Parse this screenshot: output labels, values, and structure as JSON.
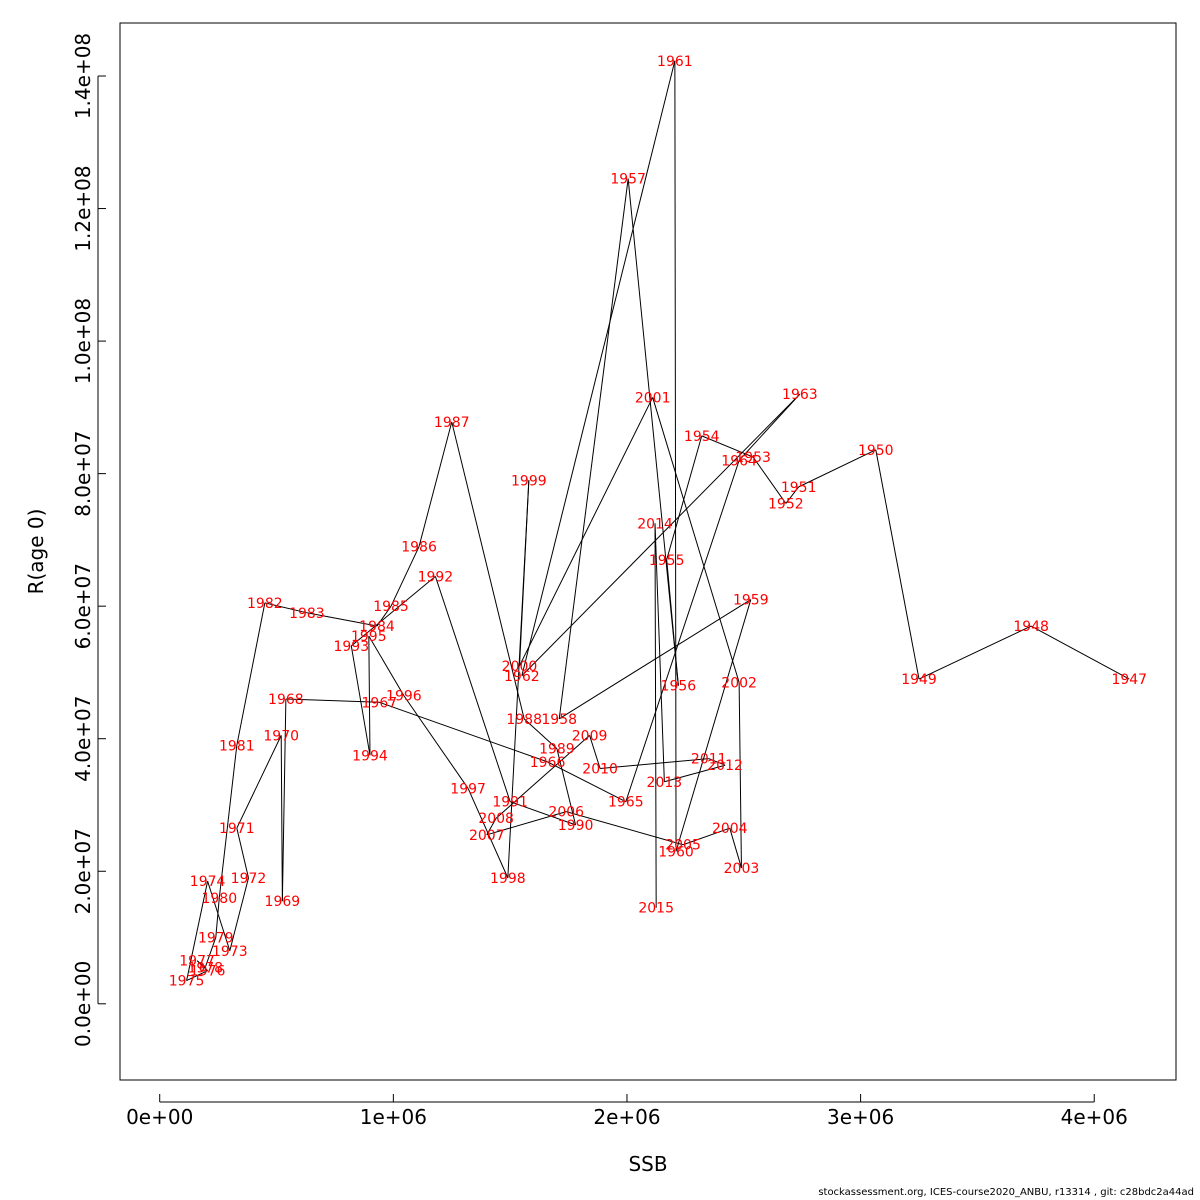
{
  "chart_data": {
    "type": "line",
    "xlabel": "SSB",
    "ylabel": "R(age 0)",
    "xlim": [
      -170000,
      4350000
    ],
    "ylim": [
      -11500000,
      148000000
    ],
    "xticks": [
      0,
      1000000,
      2000000,
      3000000,
      4000000
    ],
    "xtick_labels": [
      "0e+00",
      "1e+06",
      "2e+06",
      "3e+06",
      "4e+06"
    ],
    "yticks": [
      0,
      20000000,
      40000000,
      60000000,
      80000000,
      100000000,
      120000000,
      140000000
    ],
    "ytick_labels": [
      "0.0e+00",
      "2.0e+07",
      "4.0e+07",
      "6.0e+07",
      "8.0e+07",
      "1.0e+08",
      "1.2e+08",
      "1.4e+08"
    ],
    "grid": false,
    "line_color": "#000000",
    "label_color": "#ff0000",
    "points": [
      {
        "year": "1947",
        "x": 4150000,
        "y": 49000000
      },
      {
        "year": "1948",
        "x": 3730000,
        "y": 57000000
      },
      {
        "year": "1949",
        "x": 3250000,
        "y": 49000000
      },
      {
        "year": "1950",
        "x": 3065000,
        "y": 83600000
      },
      {
        "year": "1951",
        "x": 2735000,
        "y": 78000000
      },
      {
        "year": "1952",
        "x": 2680000,
        "y": 75500000
      },
      {
        "year": "1953",
        "x": 2540000,
        "y": 82500000
      },
      {
        "year": "1954",
        "x": 2320000,
        "y": 85700000
      },
      {
        "year": "1955",
        "x": 2170000,
        "y": 67000000
      },
      {
        "year": "1956",
        "x": 2220000,
        "y": 48000000
      },
      {
        "year": "1957",
        "x": 2005000,
        "y": 124500000
      },
      {
        "year": "1958",
        "x": 1710000,
        "y": 43000000
      },
      {
        "year": "1959",
        "x": 2530000,
        "y": 61000000
      },
      {
        "year": "1960",
        "x": 2210000,
        "y": 23000000
      },
      {
        "year": "1961",
        "x": 2205000,
        "y": 142300000
      },
      {
        "year": "1962",
        "x": 1550000,
        "y": 49500000
      },
      {
        "year": "1963",
        "x": 2740000,
        "y": 92000000
      },
      {
        "year": "1964",
        "x": 2480000,
        "y": 82000000
      },
      {
        "year": "1965",
        "x": 1995000,
        "y": 30500000
      },
      {
        "year": "1966",
        "x": 1660000,
        "y": 36500000
      },
      {
        "year": "1967",
        "x": 940000,
        "y": 45500000
      },
      {
        "year": "1968",
        "x": 540000,
        "y": 46000000
      },
      {
        "year": "1969",
        "x": 525000,
        "y": 15500000
      },
      {
        "year": "1970",
        "x": 520000,
        "y": 40500000
      },
      {
        "year": "1971",
        "x": 330000,
        "y": 26500000
      },
      {
        "year": "1972",
        "x": 380000,
        "y": 19000000
      },
      {
        "year": "1973",
        "x": 300000,
        "y": 8000000
      },
      {
        "year": "1974",
        "x": 205000,
        "y": 18500000
      },
      {
        "year": "1975",
        "x": 115000,
        "y": 3500000
      },
      {
        "year": "1976",
        "x": 205000,
        "y": 5000000
      },
      {
        "year": "1977",
        "x": 160000,
        "y": 6500000
      },
      {
        "year": "1978",
        "x": 195000,
        "y": 5500000
      },
      {
        "year": "1979",
        "x": 240000,
        "y": 10000000
      },
      {
        "year": "1980",
        "x": 255000,
        "y": 16000000
      },
      {
        "year": "1981",
        "x": 330000,
        "y": 39000000
      },
      {
        "year": "1982",
        "x": 450000,
        "y": 60500000
      },
      {
        "year": "1983",
        "x": 630000,
        "y": 59000000
      },
      {
        "year": "1984",
        "x": 930000,
        "y": 57000000
      },
      {
        "year": "1985",
        "x": 990000,
        "y": 60000000
      },
      {
        "year": "1986",
        "x": 1110000,
        "y": 69000000
      },
      {
        "year": "1987",
        "x": 1250000,
        "y": 87800000
      },
      {
        "year": "1988",
        "x": 1560000,
        "y": 43000000
      },
      {
        "year": "1989",
        "x": 1700000,
        "y": 38500000
      },
      {
        "year": "1990",
        "x": 1780000,
        "y": 27000000
      },
      {
        "year": "1991",
        "x": 1500000,
        "y": 30500000
      },
      {
        "year": "1992",
        "x": 1180000,
        "y": 64500000
      },
      {
        "year": "1993",
        "x": 820000,
        "y": 54000000
      },
      {
        "year": "1994",
        "x": 900000,
        "y": 37500000
      },
      {
        "year": "1995",
        "x": 895000,
        "y": 55500000
      },
      {
        "year": "1996",
        "x": 1045000,
        "y": 46500000
      },
      {
        "year": "1997",
        "x": 1320000,
        "y": 32500000
      },
      {
        "year": "1998",
        "x": 1490000,
        "y": 19000000
      },
      {
        "year": "1999",
        "x": 1580000,
        "y": 79000000
      },
      {
        "year": "2000",
        "x": 1540000,
        "y": 51000000
      },
      {
        "year": "2001",
        "x": 2110000,
        "y": 91500000
      },
      {
        "year": "2002",
        "x": 2480000,
        "y": 48500000
      },
      {
        "year": "2003",
        "x": 2490000,
        "y": 20500000
      },
      {
        "year": "2004",
        "x": 2440000,
        "y": 26500000
      },
      {
        "year": "2005",
        "x": 2240000,
        "y": 24000000
      },
      {
        "year": "2006",
        "x": 1740000,
        "y": 29000000
      },
      {
        "year": "2007",
        "x": 1400000,
        "y": 25500000
      },
      {
        "year": "2008",
        "x": 1440000,
        "y": 28000000
      },
      {
        "year": "2009",
        "x": 1840000,
        "y": 40500000
      },
      {
        "year": "2010",
        "x": 1885000,
        "y": 35500000
      },
      {
        "year": "2011",
        "x": 2350000,
        "y": 37000000
      },
      {
        "year": "2012",
        "x": 2420000,
        "y": 36000000
      },
      {
        "year": "2013",
        "x": 2160000,
        "y": 33500000
      },
      {
        "year": "2014",
        "x": 2120000,
        "y": 72500000
      },
      {
        "year": "2015",
        "x": 2125000,
        "y": 14500000
      }
    ]
  },
  "footer": "stockassessment.org, ICES-course2020_ANBU, r13314 , git: c28bdc2a44ad"
}
